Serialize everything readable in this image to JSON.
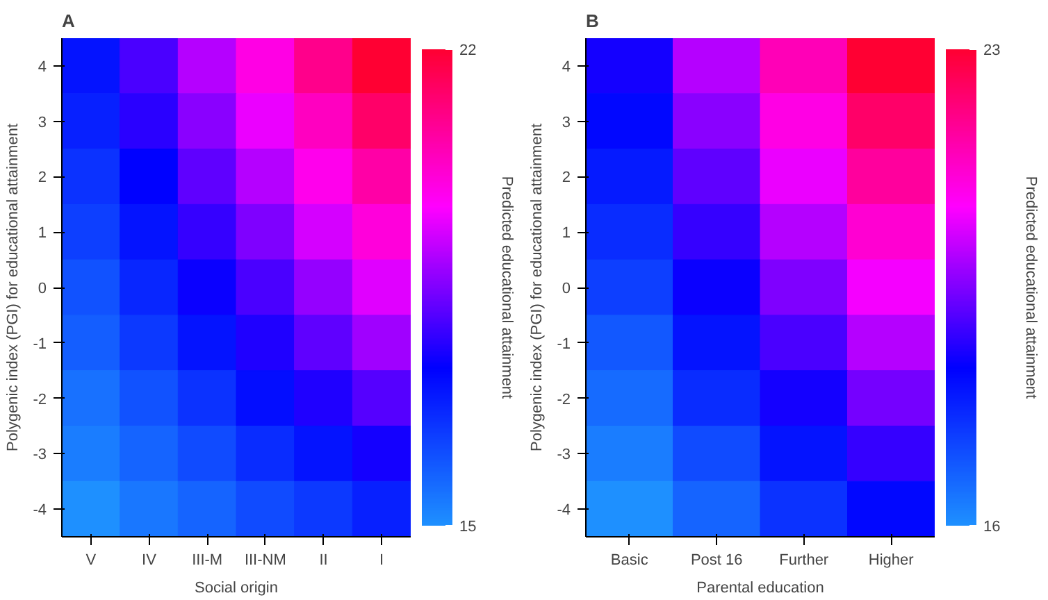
{
  "chart_data": [
    {
      "type": "heatmap",
      "title": "A",
      "xlabel": "Social origin",
      "ylabel": "Polygenic index (PGI) for educational attainment",
      "clabel": "Predicted educational attainment",
      "categories": [
        "V",
        "IV",
        "III-M",
        "III-NM",
        "II",
        "I"
      ],
      "y_categories": [
        "4",
        "3",
        "2",
        "1",
        "0",
        "-1",
        "-2",
        "-3",
        "-4"
      ],
      "clim": [
        15,
        22
      ],
      "cticks": [
        15,
        22
      ],
      "cells": [
        [
          17.0,
          18.0,
          19.0,
          20.0,
          21.0,
          22.0
        ],
        [
          16.8,
          17.7,
          18.6,
          19.5,
          20.4,
          21.4
        ],
        [
          16.5,
          17.3,
          18.2,
          19.0,
          19.9,
          20.7
        ],
        [
          16.3,
          17.0,
          17.8,
          18.5,
          19.3,
          20.1
        ],
        [
          16.0,
          16.7,
          17.4,
          18.0,
          18.7,
          19.4
        ],
        [
          15.8,
          16.4,
          17.0,
          17.6,
          18.2,
          18.8
        ],
        [
          15.5,
          16.0,
          16.5,
          17.1,
          17.6,
          18.1
        ],
        [
          15.3,
          15.7,
          16.1,
          16.6,
          17.0,
          17.5
        ],
        [
          15.0,
          15.4,
          15.7,
          16.1,
          16.4,
          16.8
        ]
      ]
    },
    {
      "type": "heatmap",
      "title": "B",
      "xlabel": "Parental education",
      "ylabel": "Polygenic index (PGI) for educational attainment",
      "clabel": "Predicted educational attainment",
      "categories": [
        "Basic",
        "Post 16",
        "Further",
        "Higher"
      ],
      "y_categories": [
        "4",
        "3",
        "2",
        "1",
        "0",
        "-1",
        "-2",
        "-3",
        "-4"
      ],
      "clim": [
        16,
        23
      ],
      "cticks": [
        16,
        23
      ],
      "cells": [
        [
          18.5,
          20.0,
          21.5,
          23.0
        ],
        [
          18.2,
          19.6,
          21.0,
          22.4
        ],
        [
          17.9,
          19.2,
          20.5,
          21.8
        ],
        [
          17.6,
          18.8,
          20.0,
          21.2
        ],
        [
          17.3,
          18.4,
          19.5,
          20.6
        ],
        [
          16.9,
          18.0,
          19.0,
          20.0
        ],
        [
          16.6,
          17.6,
          18.5,
          19.4
        ],
        [
          16.3,
          17.1,
          18.0,
          18.8
        ],
        [
          16.0,
          16.7,
          17.5,
          18.2
        ]
      ]
    }
  ]
}
